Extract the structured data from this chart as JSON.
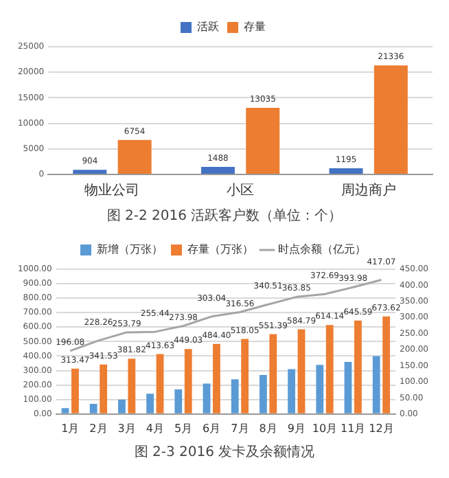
{
  "chart_data": [
    {
      "type": "bar",
      "categories": [
        "物业公司",
        "小区",
        "周边商户"
      ],
      "series": [
        {
          "name": "活跃",
          "color": "#4472c4",
          "values": [
            904,
            1488,
            1195
          ]
        },
        {
          "name": "存量",
          "color": "#ed7d31",
          "values": [
            6754,
            13035,
            21336
          ]
        }
      ],
      "ylim": [
        0,
        25000
      ],
      "yticks": [
        0,
        5000,
        10000,
        15000,
        20000,
        25000
      ],
      "grid": "y",
      "legend": "top",
      "data_labels": true,
      "annotations": [
        "图 2-2 2016 活跃客户数（单位：个）"
      ]
    },
    {
      "type": "bar",
      "categories": [
        "1月",
        "2月",
        "3月",
        "4月",
        "5月",
        "6月",
        "7月",
        "8月",
        "9月",
        "10月",
        "11月",
        "12月"
      ],
      "series": [
        {
          "name": "新增（万张）",
          "color": "#5b9bd5",
          "values": [
            40,
            70,
            100,
            140,
            170,
            210,
            240,
            270,
            310,
            340,
            360,
            400
          ]
        },
        {
          "name": "存量（万张）",
          "color": "#ed7d31",
          "values": [
            313.47,
            341.53,
            381.82,
            413.63,
            449.03,
            484.4,
            518.05,
            551.39,
            584.79,
            614.14,
            645.59,
            673.62
          ],
          "value_labels": [
            "313.47",
            "341.53",
            "381.82",
            "413.63",
            "449.03",
            "484.40",
            "518.05",
            "551.39",
            "584.79",
            "614.14",
            "645.59",
            "673.62"
          ]
        },
        {
          "name": "时点余额（亿元）",
          "type": "line",
          "axis": "y2",
          "color": "#a5a5a5",
          "values": [
            196.08,
            228.26,
            253.79,
            255.44,
            273.98,
            303.04,
            316.56,
            340.51,
            363.85,
            372.69,
            393.98,
            417.07
          ],
          "value_labels": [
            "196.08",
            "228.26",
            "253.79",
            "255.44",
            "273.98",
            "303.04",
            "316.56",
            "340.51",
            "363.85",
            "372.69",
            "393.98",
            "417.07"
          ]
        }
      ],
      "ylim": [
        0,
        1000
      ],
      "yticks": [
        {
          "value": 0,
          "label": "0.00"
        },
        {
          "value": 100,
          "label": "100.00"
        },
        {
          "value": 200,
          "label": "200.00"
        },
        {
          "value": 300,
          "label": "300.00"
        },
        {
          "value": 400,
          "label": "400.00"
        },
        {
          "value": 500,
          "label": "500.00"
        },
        {
          "value": 600,
          "label": "600.00"
        },
        {
          "value": 700,
          "label": "700.00"
        },
        {
          "value": 800,
          "label": "800.00"
        },
        {
          "value": 900,
          "label": "900.00"
        },
        {
          "value": 1000,
          "label": "1000.00"
        }
      ],
      "y2lim": [
        0,
        450
      ],
      "y2ticks": [
        {
          "value": 0,
          "label": "0.00"
        },
        {
          "value": 50,
          "label": "50.00"
        },
        {
          "value": 100,
          "label": "100.00"
        },
        {
          "value": 150,
          "label": "150.00"
        },
        {
          "value": 200,
          "label": "200.00"
        },
        {
          "value": 250,
          "label": "250.00"
        },
        {
          "value": 300,
          "label": "300.00"
        },
        {
          "value": 350,
          "label": "350.00"
        },
        {
          "value": 400,
          "label": "400.00"
        },
        {
          "value": 450,
          "label": "450.00"
        }
      ],
      "grid": "y",
      "legend": "top",
      "marker": "none",
      "line_style": "solid",
      "annotations": [
        "图 2-3 2016 发卡及余额情况"
      ]
    }
  ]
}
